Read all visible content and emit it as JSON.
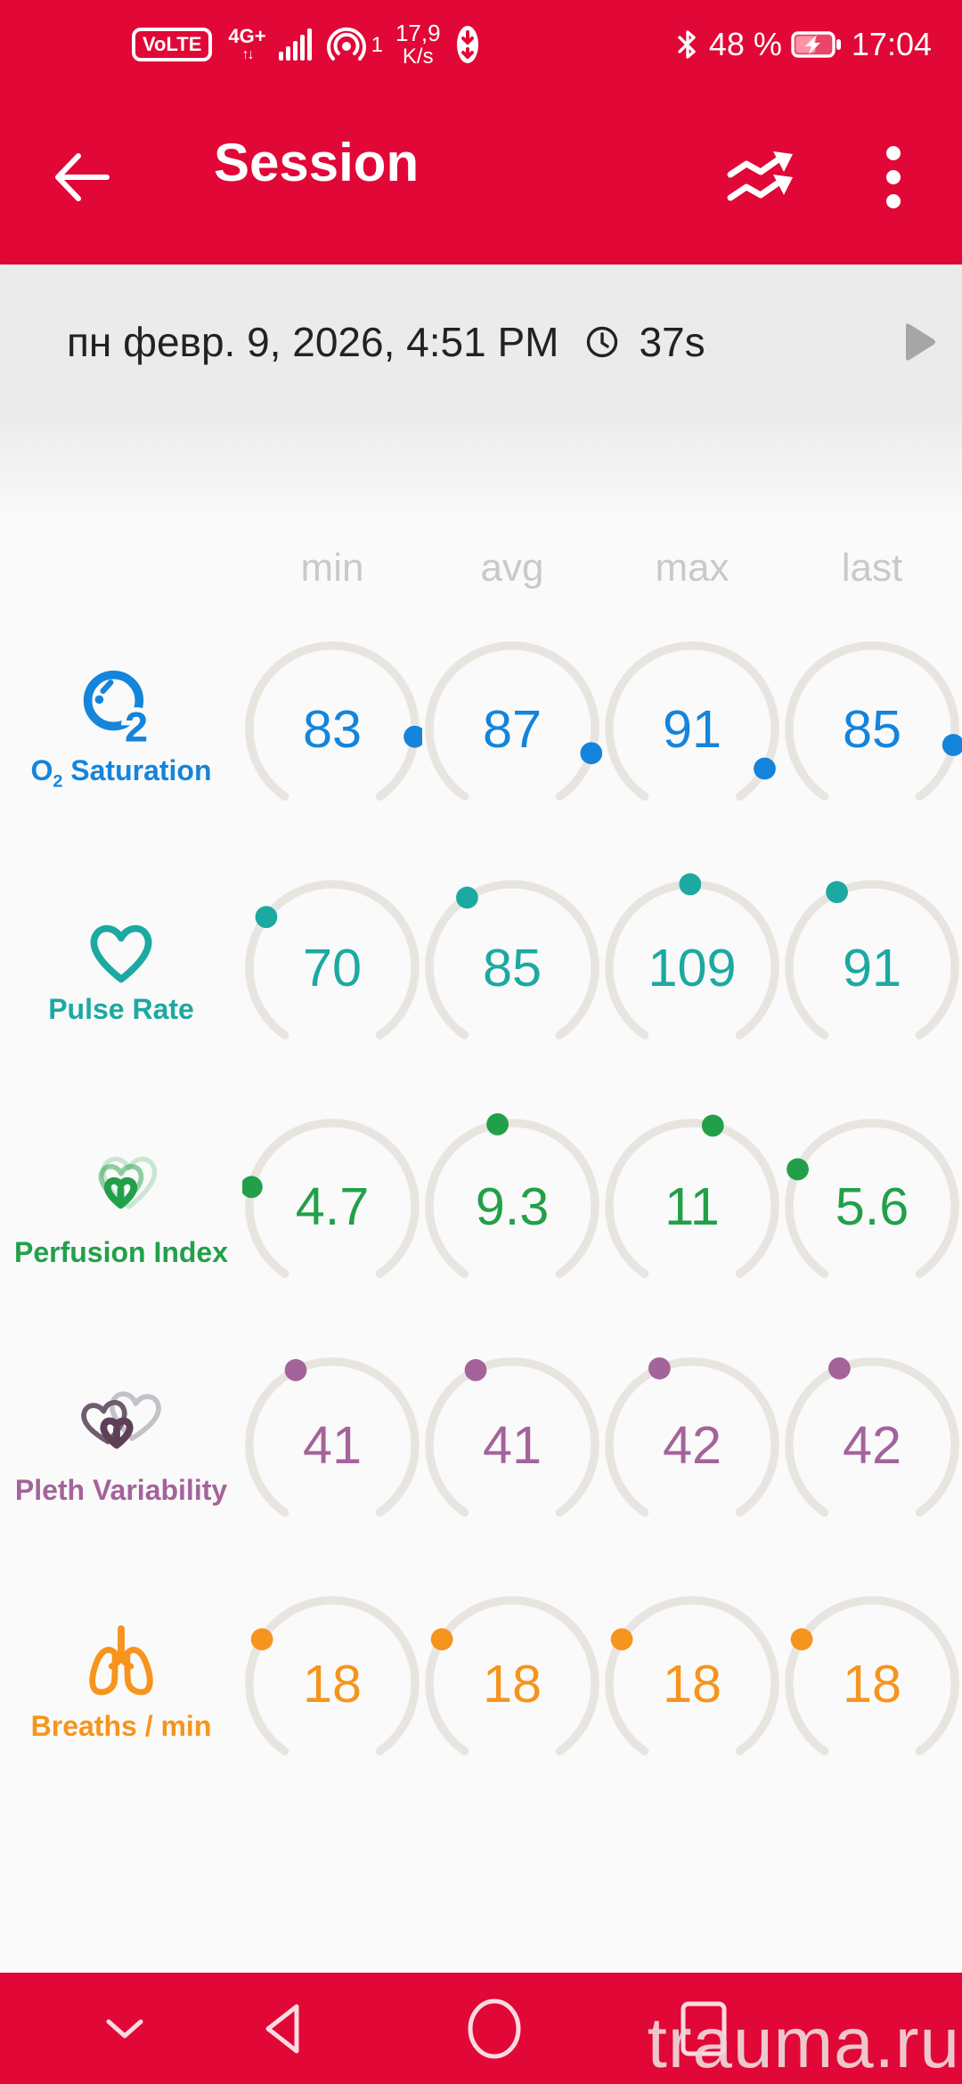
{
  "status_bar": {
    "volte": "VoLTE",
    "network": "4G+",
    "net_arrows": "↑↓",
    "hotspot_count": "1",
    "speed": "17,9",
    "speed_unit": "K/s",
    "battery_percent": "48 %",
    "time": "17:04"
  },
  "app_bar": {
    "title": "Session"
  },
  "session_bar": {
    "datetime": "пн февр. 9, 2026, 4:51 PM",
    "duration": "37s"
  },
  "table": {
    "columns": [
      "min",
      "avg",
      "max",
      "last"
    ],
    "rows": [
      {
        "id": "o2",
        "label": "O₂ Saturation",
        "color": "#1584DB",
        "range": [
          0,
          100
        ],
        "values": [
          "83",
          "87",
          "91",
          "85"
        ]
      },
      {
        "id": "pulse",
        "label": "Pulse Rate",
        "color": "#1CA9A1",
        "range": [
          0,
          220
        ],
        "values": [
          "70",
          "85",
          "109",
          "91"
        ]
      },
      {
        "id": "perfusion",
        "label": "Perfusion Index",
        "color": "#22A049",
        "range": [
          0,
          20
        ],
        "values": [
          "4.7",
          "9.3",
          "11",
          "5.6"
        ]
      },
      {
        "id": "pleth",
        "label": "Pleth Variability",
        "color": "#A4639A",
        "range": [
          0,
          100
        ],
        "values": [
          "41",
          "41",
          "42",
          "42"
        ]
      },
      {
        "id": "breaths",
        "label": "Breaths / min",
        "color": "#F7941D",
        "range": [
          0,
          60
        ],
        "values": [
          "18",
          "18",
          "18",
          "18"
        ]
      }
    ]
  },
  "watermark": "trauma.ru",
  "colors": {
    "header_red": "#E10736",
    "session_bar_bg": "#EBEBEB",
    "content_bg": "#FAFAFA",
    "arc": "#E8E5E1",
    "column_header": "#C9C9C9",
    "play": "#A6A6A6"
  }
}
